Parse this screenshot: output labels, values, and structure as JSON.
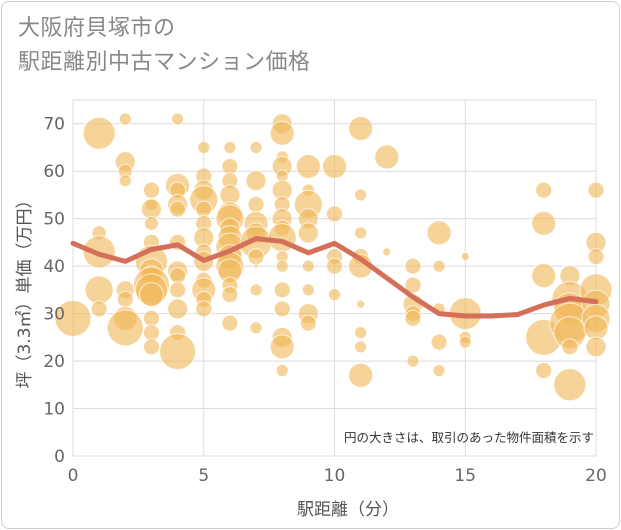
{
  "chart_data": {
    "type": "scatter",
    "title_lines": [
      "大阪府貝塚市の",
      "駅距離別中古マンション価格"
    ],
    "xlabel": "駅距離（分）",
    "ylabel": "坪（3.3㎡）単価（万円）",
    "annotation": "円の大きさは、取引のあった物件面積を示す",
    "xlim": [
      0,
      20
    ],
    "ylim": [
      0,
      75
    ],
    "x_ticks": [
      0,
      5,
      10,
      15,
      20
    ],
    "y_ticks": [
      0,
      10,
      20,
      30,
      40,
      50,
      60,
      70
    ],
    "grid": true,
    "colors": {
      "bubble": "#f1b858",
      "line": "#d4705a",
      "grid": "#dcdcdc"
    },
    "series": [
      {
        "kind": "bubble",
        "points": [
          {
            "x": 0,
            "y": 29,
            "s": 18
          },
          {
            "x": 1,
            "y": 68,
            "s": 16
          },
          {
            "x": 1,
            "y": 47,
            "s": 7
          },
          {
            "x": 1,
            "y": 43,
            "s": 16
          },
          {
            "x": 1,
            "y": 35,
            "s": 14
          },
          {
            "x": 1,
            "y": 31,
            "s": 8
          },
          {
            "x": 2,
            "y": 71,
            "s": 6
          },
          {
            "x": 2,
            "y": 62,
            "s": 10
          },
          {
            "x": 2,
            "y": 60,
            "s": 7
          },
          {
            "x": 2,
            "y": 58,
            "s": 6
          },
          {
            "x": 2,
            "y": 35,
            "s": 9
          },
          {
            "x": 2,
            "y": 33,
            "s": 8
          },
          {
            "x": 2,
            "y": 29,
            "s": 12
          },
          {
            "x": 2,
            "y": 27,
            "s": 18
          },
          {
            "x": 3,
            "y": 56,
            "s": 8
          },
          {
            "x": 3,
            "y": 53,
            "s": 6
          },
          {
            "x": 3,
            "y": 52,
            "s": 10
          },
          {
            "x": 3,
            "y": 49,
            "s": 7
          },
          {
            "x": 3,
            "y": 45,
            "s": 8
          },
          {
            "x": 3,
            "y": 41,
            "s": 16
          },
          {
            "x": 3,
            "y": 39,
            "s": 12
          },
          {
            "x": 3,
            "y": 38,
            "s": 10
          },
          {
            "x": 3,
            "y": 36,
            "s": 18
          },
          {
            "x": 3,
            "y": 35,
            "s": 16
          },
          {
            "x": 3,
            "y": 34,
            "s": 12
          },
          {
            "x": 3,
            "y": 29,
            "s": 8
          },
          {
            "x": 3,
            "y": 26,
            "s": 8
          },
          {
            "x": 3,
            "y": 23,
            "s": 8
          },
          {
            "x": 4,
            "y": 71,
            "s": 6
          },
          {
            "x": 4,
            "y": 57,
            "s": 12
          },
          {
            "x": 4,
            "y": 56,
            "s": 8
          },
          {
            "x": 4,
            "y": 53,
            "s": 10
          },
          {
            "x": 4,
            "y": 52,
            "s": 8
          },
          {
            "x": 4,
            "y": 45,
            "s": 8
          },
          {
            "x": 4,
            "y": 39,
            "s": 10
          },
          {
            "x": 4,
            "y": 38,
            "s": 8
          },
          {
            "x": 4,
            "y": 35,
            "s": 8
          },
          {
            "x": 4,
            "y": 31,
            "s": 10
          },
          {
            "x": 4,
            "y": 26,
            "s": 8
          },
          {
            "x": 4,
            "y": 22,
            "s": 18
          },
          {
            "x": 5,
            "y": 65,
            "s": 6
          },
          {
            "x": 5,
            "y": 59,
            "s": 8
          },
          {
            "x": 5,
            "y": 56,
            "s": 10
          },
          {
            "x": 5,
            "y": 54,
            "s": 14
          },
          {
            "x": 5,
            "y": 52,
            "s": 8
          },
          {
            "x": 5,
            "y": 49,
            "s": 8
          },
          {
            "x": 5,
            "y": 46,
            "s": 10
          },
          {
            "x": 5,
            "y": 43,
            "s": 8
          },
          {
            "x": 5,
            "y": 41,
            "s": 10
          },
          {
            "x": 5,
            "y": 37,
            "s": 8
          },
          {
            "x": 5,
            "y": 35,
            "s": 12
          },
          {
            "x": 5,
            "y": 33,
            "s": 8
          },
          {
            "x": 5,
            "y": 31,
            "s": 8
          },
          {
            "x": 6,
            "y": 65,
            "s": 6
          },
          {
            "x": 6,
            "y": 61,
            "s": 8
          },
          {
            "x": 6,
            "y": 58,
            "s": 8
          },
          {
            "x": 6,
            "y": 55,
            "s": 10
          },
          {
            "x": 6,
            "y": 51,
            "s": 12
          },
          {
            "x": 6,
            "y": 50,
            "s": 14
          },
          {
            "x": 6,
            "y": 48,
            "s": 10
          },
          {
            "x": 6,
            "y": 46,
            "s": 12
          },
          {
            "x": 6,
            "y": 44,
            "s": 14
          },
          {
            "x": 6,
            "y": 42,
            "s": 12
          },
          {
            "x": 6,
            "y": 40,
            "s": 14
          },
          {
            "x": 6,
            "y": 39,
            "s": 12
          },
          {
            "x": 6,
            "y": 36,
            "s": 8
          },
          {
            "x": 6,
            "y": 34,
            "s": 8
          },
          {
            "x": 6,
            "y": 28,
            "s": 8
          },
          {
            "x": 7,
            "y": 65,
            "s": 6
          },
          {
            "x": 7,
            "y": 58,
            "s": 10
          },
          {
            "x": 7,
            "y": 53,
            "s": 8
          },
          {
            "x": 7,
            "y": 49,
            "s": 12
          },
          {
            "x": 7,
            "y": 47,
            "s": 10
          },
          {
            "x": 7,
            "y": 45,
            "s": 16
          },
          {
            "x": 7,
            "y": 42,
            "s": 8
          },
          {
            "x": 7,
            "y": 40,
            "s": 2
          },
          {
            "x": 7,
            "y": 35,
            "s": 6
          },
          {
            "x": 7,
            "y": 27,
            "s": 6
          },
          {
            "x": 8,
            "y": 70,
            "s": 10
          },
          {
            "x": 8,
            "y": 68,
            "s": 12
          },
          {
            "x": 8,
            "y": 63,
            "s": 6
          },
          {
            "x": 8,
            "y": 61,
            "s": 10
          },
          {
            "x": 8,
            "y": 59,
            "s": 6
          },
          {
            "x": 8,
            "y": 56,
            "s": 10
          },
          {
            "x": 8,
            "y": 53,
            "s": 8
          },
          {
            "x": 8,
            "y": 50,
            "s": 10
          },
          {
            "x": 8,
            "y": 48,
            "s": 8
          },
          {
            "x": 8,
            "y": 46,
            "s": 14
          },
          {
            "x": 8,
            "y": 42,
            "s": 6
          },
          {
            "x": 8,
            "y": 40,
            "s": 6
          },
          {
            "x": 8,
            "y": 35,
            "s": 8
          },
          {
            "x": 8,
            "y": 31,
            "s": 8
          },
          {
            "x": 8,
            "y": 25,
            "s": 10
          },
          {
            "x": 8,
            "y": 23,
            "s": 12
          },
          {
            "x": 8,
            "y": 18,
            "s": 6
          },
          {
            "x": 9,
            "y": 61,
            "s": 12
          },
          {
            "x": 9,
            "y": 56,
            "s": 6
          },
          {
            "x": 9,
            "y": 53,
            "s": 14
          },
          {
            "x": 9,
            "y": 50,
            "s": 10
          },
          {
            "x": 9,
            "y": 47,
            "s": 10
          },
          {
            "x": 9,
            "y": 40,
            "s": 6
          },
          {
            "x": 9,
            "y": 35,
            "s": 6
          },
          {
            "x": 9,
            "y": 30,
            "s": 10
          },
          {
            "x": 9,
            "y": 28,
            "s": 8
          },
          {
            "x": 10,
            "y": 61,
            "s": 12
          },
          {
            "x": 10,
            "y": 51,
            "s": 8
          },
          {
            "x": 10,
            "y": 42,
            "s": 8
          },
          {
            "x": 10,
            "y": 40,
            "s": 8
          },
          {
            "x": 10,
            "y": 34,
            "s": 6
          },
          {
            "x": 11,
            "y": 69,
            "s": 12
          },
          {
            "x": 11,
            "y": 55,
            "s": 6
          },
          {
            "x": 11,
            "y": 47,
            "s": 6
          },
          {
            "x": 11,
            "y": 42,
            "s": 8
          },
          {
            "x": 11,
            "y": 40,
            "s": 12
          },
          {
            "x": 11,
            "y": 32,
            "s": 4
          },
          {
            "x": 11,
            "y": 26,
            "s": 6
          },
          {
            "x": 11,
            "y": 23,
            "s": 6
          },
          {
            "x": 11,
            "y": 17,
            "s": 12
          },
          {
            "x": 12,
            "y": 63,
            "s": 12
          },
          {
            "x": 12,
            "y": 43,
            "s": 4
          },
          {
            "x": 13,
            "y": 40,
            "s": 8
          },
          {
            "x": 13,
            "y": 36,
            "s": 8
          },
          {
            "x": 13,
            "y": 32,
            "s": 10
          },
          {
            "x": 13,
            "y": 30,
            "s": 8
          },
          {
            "x": 13,
            "y": 29,
            "s": 8
          },
          {
            "x": 13,
            "y": 20,
            "s": 6
          },
          {
            "x": 14,
            "y": 47,
            "s": 12
          },
          {
            "x": 14,
            "y": 40,
            "s": 6
          },
          {
            "x": 14,
            "y": 31,
            "s": 6
          },
          {
            "x": 14,
            "y": 24,
            "s": 8
          },
          {
            "x": 14,
            "y": 18,
            "s": 6
          },
          {
            "x": 15,
            "y": 42,
            "s": 4
          },
          {
            "x": 15,
            "y": 30,
            "s": 16
          },
          {
            "x": 15,
            "y": 25,
            "s": 6
          },
          {
            "x": 15,
            "y": 24,
            "s": 6
          },
          {
            "x": 18,
            "y": 56,
            "s": 8
          },
          {
            "x": 18,
            "y": 49,
            "s": 12
          },
          {
            "x": 18,
            "y": 38,
            "s": 12
          },
          {
            "x": 18,
            "y": 25,
            "s": 18
          },
          {
            "x": 18,
            "y": 18,
            "s": 8
          },
          {
            "x": 19,
            "y": 38,
            "s": 10
          },
          {
            "x": 19,
            "y": 33,
            "s": 18
          },
          {
            "x": 19,
            "y": 31,
            "s": 16
          },
          {
            "x": 19,
            "y": 28,
            "s": 20
          },
          {
            "x": 19,
            "y": 26,
            "s": 16
          },
          {
            "x": 19,
            "y": 23,
            "s": 8
          },
          {
            "x": 19,
            "y": 15,
            "s": 16
          },
          {
            "x": 20,
            "y": 56,
            "s": 8
          },
          {
            "x": 20,
            "y": 45,
            "s": 10
          },
          {
            "x": 20,
            "y": 42,
            "s": 8
          },
          {
            "x": 20,
            "y": 35,
            "s": 16
          },
          {
            "x": 20,
            "y": 32,
            "s": 14
          },
          {
            "x": 20,
            "y": 29,
            "s": 14
          },
          {
            "x": 20,
            "y": 27,
            "s": 12
          },
          {
            "x": 20,
            "y": 23,
            "s": 10
          }
        ]
      },
      {
        "kind": "line",
        "x": [
          0,
          1,
          2,
          3,
          4,
          5,
          6,
          7,
          8,
          9,
          10,
          11,
          12,
          13,
          14,
          15,
          16,
          17,
          18,
          19,
          20
        ],
        "y": [
          44.8,
          42.5,
          41.0,
          43.5,
          44.5,
          41.2,
          43.2,
          45.8,
          45.2,
          42.8,
          44.8,
          41.5,
          37.5,
          33.5,
          30.0,
          29.5,
          29.5,
          29.8,
          31.8,
          33.2,
          32.5
        ]
      }
    ]
  }
}
